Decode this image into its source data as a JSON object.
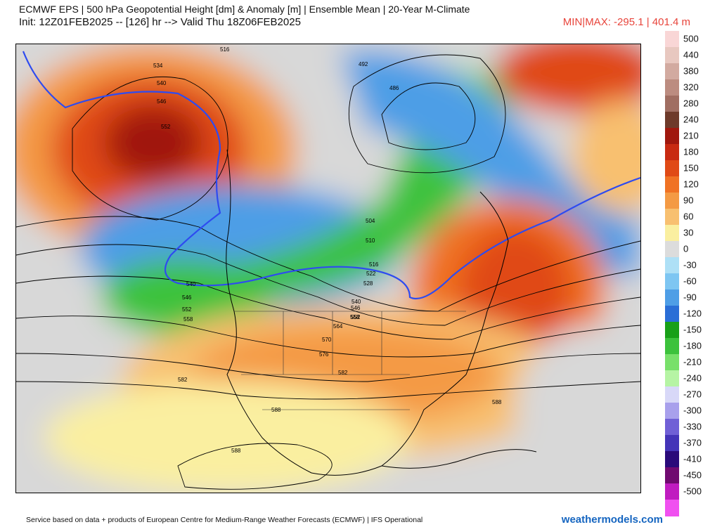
{
  "header": {
    "title": "ECMWF EPS | 500 hPa Geopotential Height [dm] & Anomaly [m] | Ensemble Mean | 20-Year M-Climate",
    "subtitle": "Init: 12Z01FEB2025 -- [126] hr --> Valid Thu 18Z06FEB2025",
    "minmax": "MIN|MAX: -295.1 | 401.4 m"
  },
  "colorbar": {
    "labels": [
      "500",
      "440",
      "380",
      "320",
      "280",
      "240",
      "210",
      "180",
      "150",
      "120",
      "90",
      "60",
      "30",
      "0",
      "-30",
      "-60",
      "-90",
      "-120",
      "-150",
      "-180",
      "-210",
      "-240",
      "-270",
      "-300",
      "-330",
      "-370",
      "-410",
      "-450",
      "-500"
    ],
    "colors": [
      "#f9d6d6",
      "#e8c8c0",
      "#d2aaa0",
      "#bc8c80",
      "#a06e62",
      "#6e3a2a",
      "#a0180e",
      "#c82a12",
      "#e04a16",
      "#f07224",
      "#f49a44",
      "#f8c070",
      "#faefa0",
      "#dcdcdc",
      "#aee0f6",
      "#7ec6f2",
      "#4e9ee6",
      "#2a6ed6",
      "#18a018",
      "#3cc23c",
      "#78e06a",
      "#b6f4a4",
      "#d8d8f8",
      "#a8a0ec",
      "#7060d6",
      "#4434b8",
      "#2a0a7a",
      "#700a70",
      "#c01cc0",
      "#f050f0"
    ]
  },
  "map": {
    "contour_labels": [
      "516",
      "534",
      "540",
      "546",
      "552",
      "492",
      "486",
      "504",
      "510",
      "516",
      "522",
      "528",
      "540",
      "546",
      "552",
      "558",
      "564",
      "570",
      "576",
      "582",
      "582",
      "588",
      "588",
      "588",
      "540",
      "546",
      "552",
      "558"
    ],
    "colors": {
      "height_contour": "#000000",
      "reference_contour": "#2e4bf0",
      "coastline": "#000000",
      "border": "#333333"
    }
  },
  "footer": {
    "credit": "Service based on data + products of European Centre for Medium-Range Weather Forecasts (ECMWF) | IFS Operational",
    "brand": "weathermodels.com"
  }
}
